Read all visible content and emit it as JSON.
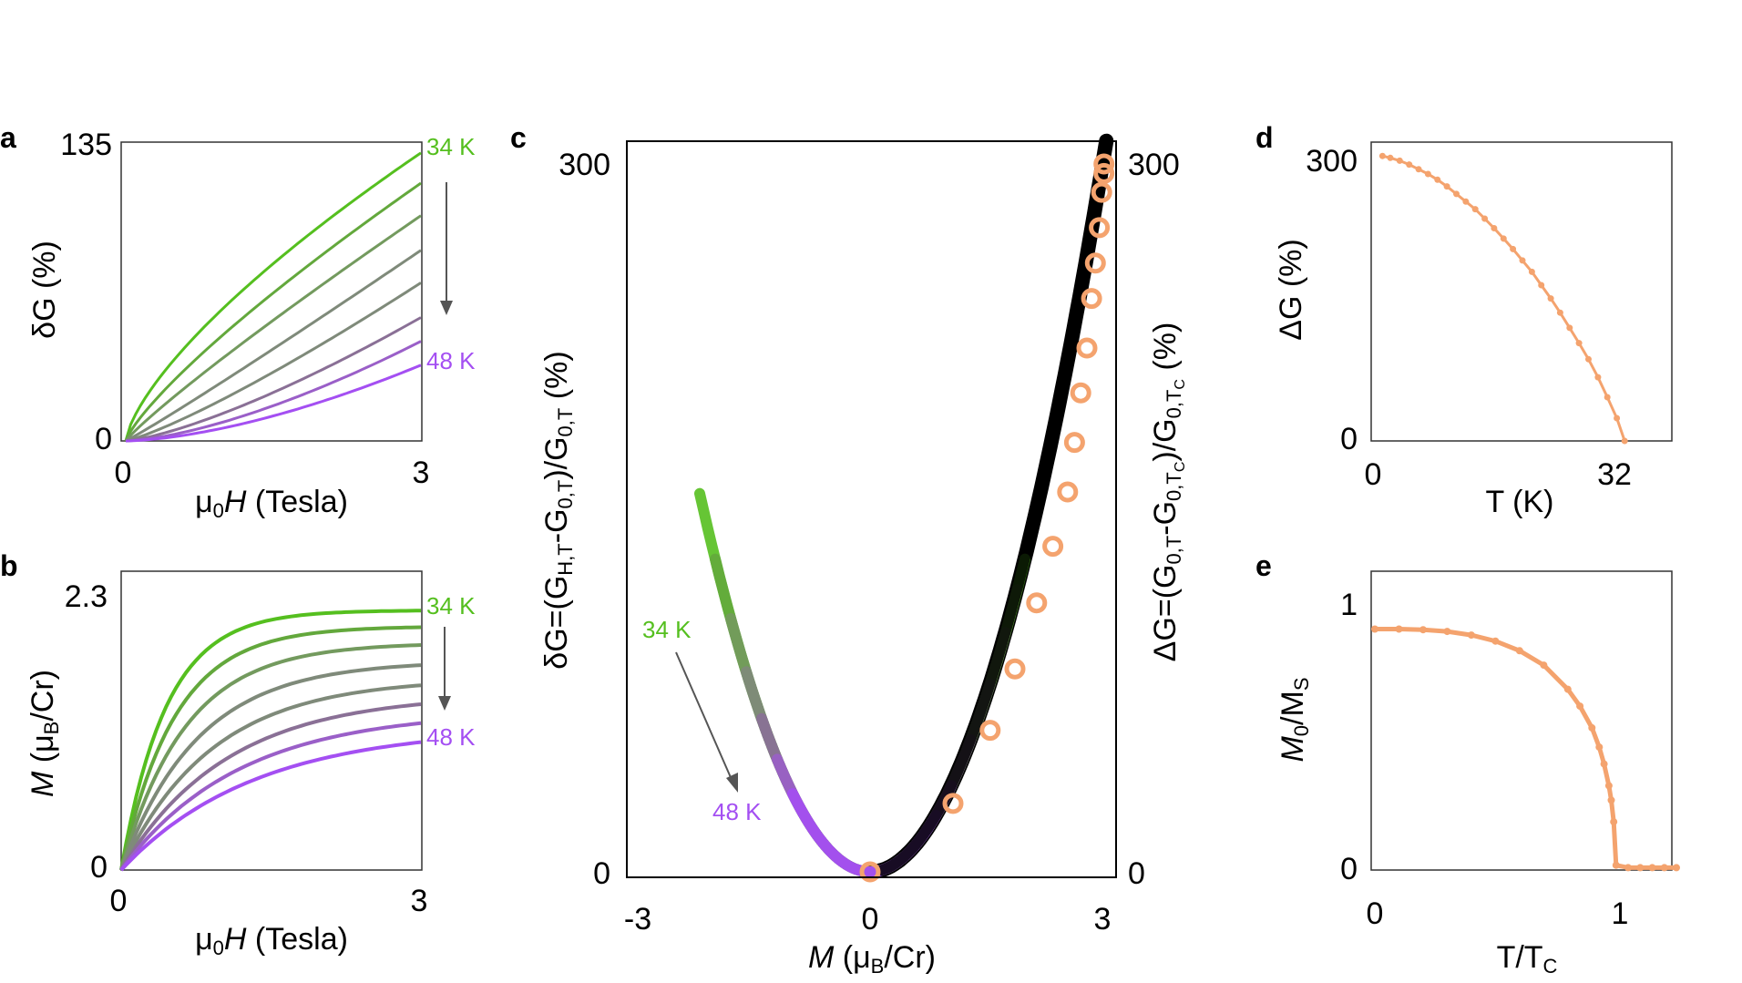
{
  "panel_labels": {
    "a": "a",
    "b": "b",
    "c": "c",
    "d": "d",
    "e": "e"
  },
  "colors": {
    "green": "#55bf1f",
    "purple": "#a44ff2",
    "gradient": [
      "#55bf1f",
      "#63a83c",
      "#739a5e",
      "#7f8a7a",
      "#8a7096",
      "#9a5fc8",
      "#a44ff2"
    ],
    "orange": "#f4a36e",
    "black": "#000000",
    "arrow": "#555555"
  },
  "chart_data": [
    {
      "id": "a",
      "type": "line",
      "ylabel_base": "δG (%)",
      "xlabel": {
        "pre": "μ",
        "sub": "0",
        "italic": "H",
        "post": " (Tesla)"
      },
      "xlim": [
        0,
        3
      ],
      "ylim": [
        0,
        135
      ],
      "xticks": [
        0,
        3
      ],
      "yticks": [
        0,
        135
      ],
      "annotations": {
        "top": "34 K",
        "bottom": "48 K"
      },
      "series_end_values": [
        133,
        119,
        104,
        88,
        73,
        57,
        46,
        35
      ],
      "series_exponents": [
        0.7,
        0.8,
        0.9,
        1.05,
        1.2,
        1.35,
        1.5,
        1.6
      ]
    },
    {
      "id": "b",
      "type": "line",
      "ylabel": {
        "italic": "M",
        "pre": " (μ",
        "sub": "B",
        "post": "/Cr)"
      },
      "xlabel": {
        "pre": "μ",
        "sub": "0",
        "italic": "H",
        "post": " (Tesla)"
      },
      "xlim": [
        0,
        3
      ],
      "ylim": [
        0,
        2.3
      ],
      "xticks": [
        0,
        3
      ],
      "yticks": [
        0,
        2.3
      ],
      "annotations": {
        "top": "34 K",
        "bottom": "48 K"
      },
      "series_end_values": [
        2.19,
        2.05,
        1.9,
        1.73,
        1.56,
        1.4,
        1.24,
        1.08
      ],
      "series_rates": [
        2.2,
        1.85,
        1.55,
        1.3,
        1.1,
        0.95,
        0.85,
        0.75
      ]
    },
    {
      "id": "c",
      "type": "scatter",
      "ylabel_left": "δG=(G_{H,T}-G_{0,T})/G_{0,T} (%)",
      "ylabel_right": "ΔG=(G_{0,T}-G_{0,T_C})/G_{0,T_C} (%)",
      "xlabel": {
        "italic": "M",
        "pre": " (μ",
        "sub": "B",
        "post": "/Cr)"
      },
      "xlim": [
        -3.1,
        3.1
      ],
      "ylim": [
        0,
        300
      ],
      "xticks": [
        -3,
        0,
        3
      ],
      "yticks_left": [
        0,
        300
      ],
      "yticks_right": [
        0,
        300
      ],
      "annotations": {
        "top": "34 K",
        "bottom": "48 K"
      },
      "curve_coefficient": 33.3,
      "colored_branch_x_min": [
        -2.2,
        -2.0,
        -1.8,
        -1.6,
        -1.4,
        -1.2,
        -1.0
      ],
      "colored_branch_x_max": [
        2.0,
        1.9,
        1.75,
        1.55,
        1.3,
        1.05,
        0.85
      ],
      "circles_x": [
        0.0,
        1.07,
        1.55,
        1.87,
        2.15,
        2.36,
        2.55,
        2.64,
        2.72,
        2.8,
        2.86,
        2.91,
        2.96,
        2.99,
        3.02,
        3.02
      ],
      "circles_y": [
        0,
        29,
        60,
        86,
        114,
        138,
        161,
        182,
        203,
        222,
        243,
        258,
        273,
        288,
        296,
        300
      ]
    },
    {
      "id": "d",
      "type": "line",
      "ylabel": "ΔG (%)",
      "xlabel": "T (K)",
      "xlim": [
        0,
        38
      ],
      "ylim": [
        0,
        305
      ],
      "xticks": [
        0,
        32
      ],
      "yticks": [
        0,
        300
      ],
      "x": [
        1.2,
        2.2,
        3.4,
        4.6,
        5.8,
        7.0,
        8.2,
        9.4,
        10.6,
        11.8,
        13,
        14.2,
        15.4,
        16.6,
        17.8,
        19,
        20.2,
        21.4,
        22.6,
        23.8,
        25,
        26.2,
        27.4,
        28.6,
        29.8,
        31,
        32
      ],
      "y": [
        300,
        298,
        295,
        291,
        286,
        281,
        275,
        268,
        260,
        252,
        244,
        234,
        224,
        213,
        202,
        190,
        178,
        164,
        150,
        135,
        119,
        103,
        86,
        67,
        46,
        24,
        0
      ]
    },
    {
      "id": "e",
      "type": "line",
      "ylabel": {
        "italic": "M",
        "sub1": "0",
        "mid": "/M",
        "sub2": "S"
      },
      "xlabel": {
        "pre": "T/T",
        "sub": "C"
      },
      "xlim": [
        0,
        1.25
      ],
      "ylim": [
        0,
        1.1
      ],
      "xticks": [
        0,
        1
      ],
      "yticks": [
        0,
        1
      ],
      "x": [
        0,
        0.1,
        0.2,
        0.3,
        0.4,
        0.5,
        0.6,
        0.7,
        0.8,
        0.85,
        0.9,
        0.93,
        0.95,
        0.97,
        0.98,
        0.99,
        1.0,
        1.05,
        1.1,
        1.15,
        1.2,
        1.25
      ],
      "y": [
        1.0,
        1.0,
        0.997,
        0.99,
        0.975,
        0.95,
        0.91,
        0.85,
        0.75,
        0.68,
        0.59,
        0.51,
        0.44,
        0.35,
        0.29,
        0.2,
        0.02,
        0.01,
        0.01,
        0.01,
        0.01,
        0.01
      ]
    }
  ]
}
